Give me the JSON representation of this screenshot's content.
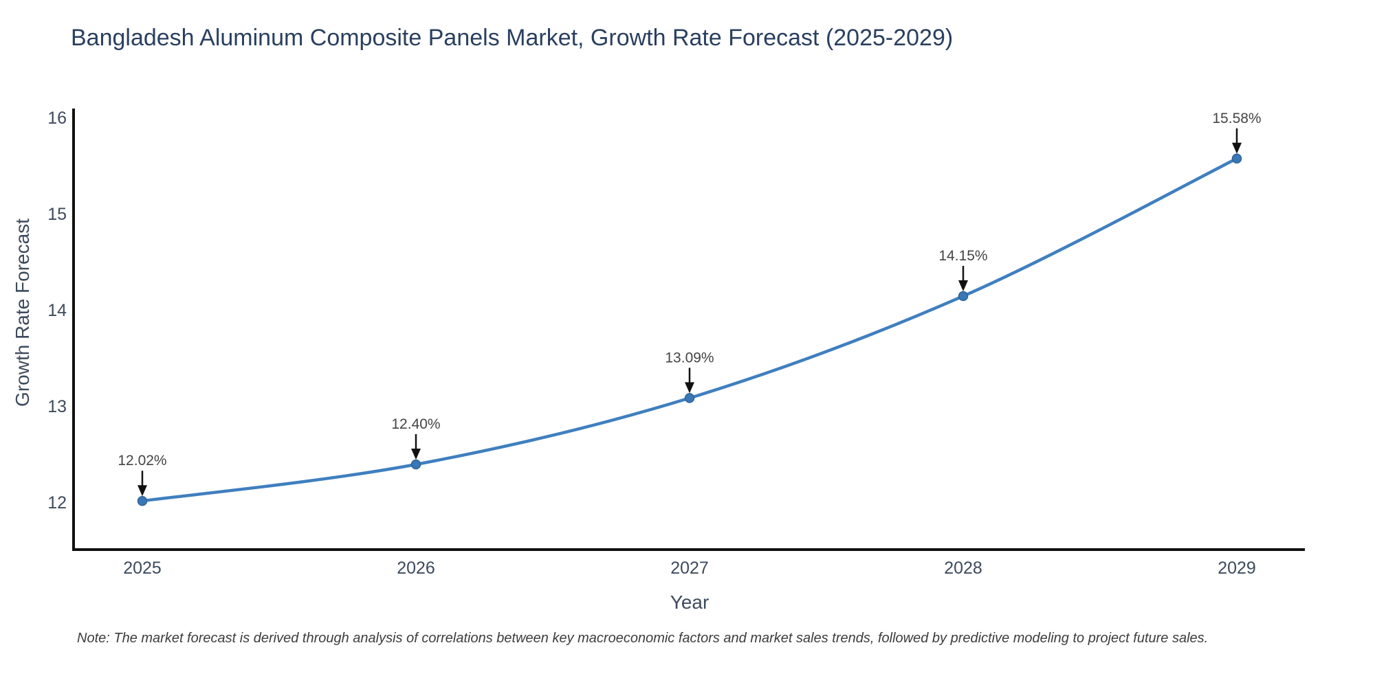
{
  "title": "Bangladesh Aluminum Composite Panels Market, Growth Rate Forecast (2025-2029)",
  "note": "Note: The market forecast is derived through analysis of correlations between key macroeconomic factors and market sales trends, followed by predictive modeling to project future sales.",
  "chart_data": {
    "type": "line",
    "title": "Bangladesh Aluminum Composite Panels Market, Growth Rate Forecast (2025-2029)",
    "xlabel": "Year",
    "ylabel": "Growth Rate Forecast",
    "x": [
      2025,
      2026,
      2027,
      2028,
      2029
    ],
    "values": [
      12.02,
      12.4,
      13.09,
      14.15,
      15.58
    ],
    "point_labels": [
      "12.02%",
      "12.40%",
      "13.09%",
      "14.15%",
      "15.58%"
    ],
    "yticks": [
      12,
      13,
      14,
      15,
      16
    ],
    "xticks": [
      "2025",
      "2026",
      "2027",
      "2028",
      "2029"
    ],
    "ylim": [
      11.5,
      16.1
    ],
    "line_shape": "spline",
    "grid": false,
    "legend": "none",
    "marker": "circle",
    "annotation_arrows": "down-to-point",
    "colors": {
      "line": "#3f7fbf",
      "marker_fill": "#3a77b7",
      "marker_edge": "#2e6396",
      "axis_line": "#111111",
      "arrow": "#111111",
      "title_text": "#2a3f5f",
      "tick_text": "#3d4a5c",
      "annotation_text": "#444444",
      "note_text": "#3c3c3c",
      "background": "#ffffff"
    }
  }
}
